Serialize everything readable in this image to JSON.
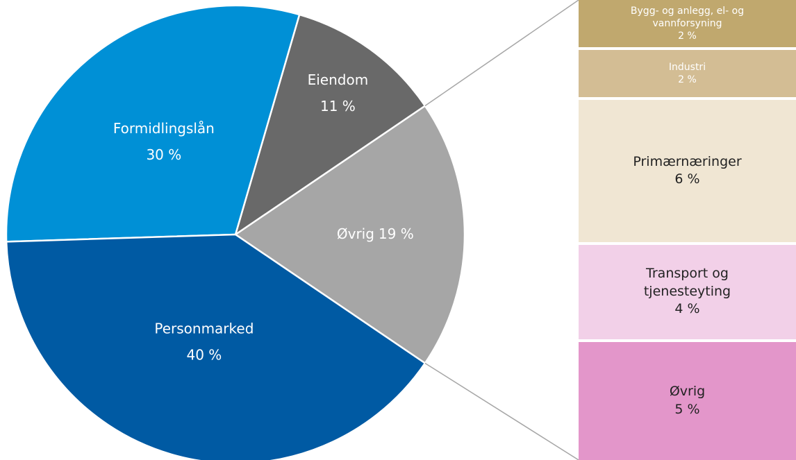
{
  "chart_data": {
    "type": "pie",
    "categories": [
      "Øvrig",
      "Eiendom",
      "Formidlingslån",
      "Personmarked"
    ],
    "values": [
      19,
      11,
      30,
      40
    ],
    "value_labels": [
      "19 %",
      "11 %",
      "30 %",
      "40 %"
    ],
    "colors": [
      "#a6a6a6",
      "#696969",
      "#0090d6",
      "#005aa3"
    ],
    "breakdown": {
      "type": "stacked-bar",
      "categories": [
        "Bygg- og anlegg, el- og vannforsyning",
        "Industri",
        "Primærnæringer",
        "Transport og tjenesteyting",
        "Øvrig"
      ],
      "values": [
        2,
        2,
        6,
        4,
        5
      ],
      "value_labels": [
        "2 %",
        "2 %",
        "6 %",
        "4 %",
        "5 %"
      ],
      "colors": [
        "#c0a86e",
        "#d3bd94",
        "#f0e6d3",
        "#f2d0e8",
        "#e396ca"
      ]
    }
  }
}
